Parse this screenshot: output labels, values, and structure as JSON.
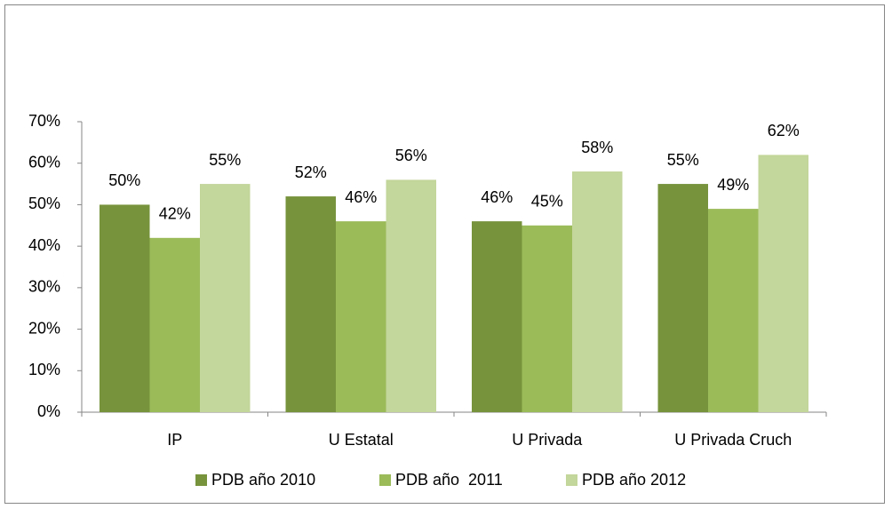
{
  "chart_data": {
    "type": "bar",
    "categories": [
      "IP",
      "U Estatal",
      "U Privada",
      "U Privada Cruch"
    ],
    "series": [
      {
        "name": "PDB año 2010",
        "color": "#77933c",
        "values": [
          50,
          52,
          46,
          55
        ],
        "value_labels": [
          "50%",
          "52%",
          "46%",
          "55%"
        ]
      },
      {
        "name": "PDB año  2011",
        "color": "#9bbb59",
        "values": [
          42,
          46,
          45,
          49
        ],
        "value_labels": [
          "42%",
          "46%",
          "45%",
          "49%"
        ]
      },
      {
        "name": "PDB año 2012",
        "color": "#c3d69b",
        "values": [
          55,
          56,
          58,
          62
        ],
        "value_labels": [
          "55%",
          "56%",
          "58%",
          "62%"
        ]
      }
    ],
    "ylim": [
      0,
      70
    ],
    "yticks": [
      {
        "value": 0,
        "label": "0%"
      },
      {
        "value": 10,
        "label": "10%"
      },
      {
        "value": 20,
        "label": "20%"
      },
      {
        "value": 30,
        "label": "30%"
      },
      {
        "value": 40,
        "label": "40%"
      },
      {
        "value": 50,
        "label": "50%"
      },
      {
        "value": 60,
        "label": "60%"
      },
      {
        "value": 70,
        "label": "70%"
      }
    ],
    "grid": false,
    "legend": "bottom"
  }
}
